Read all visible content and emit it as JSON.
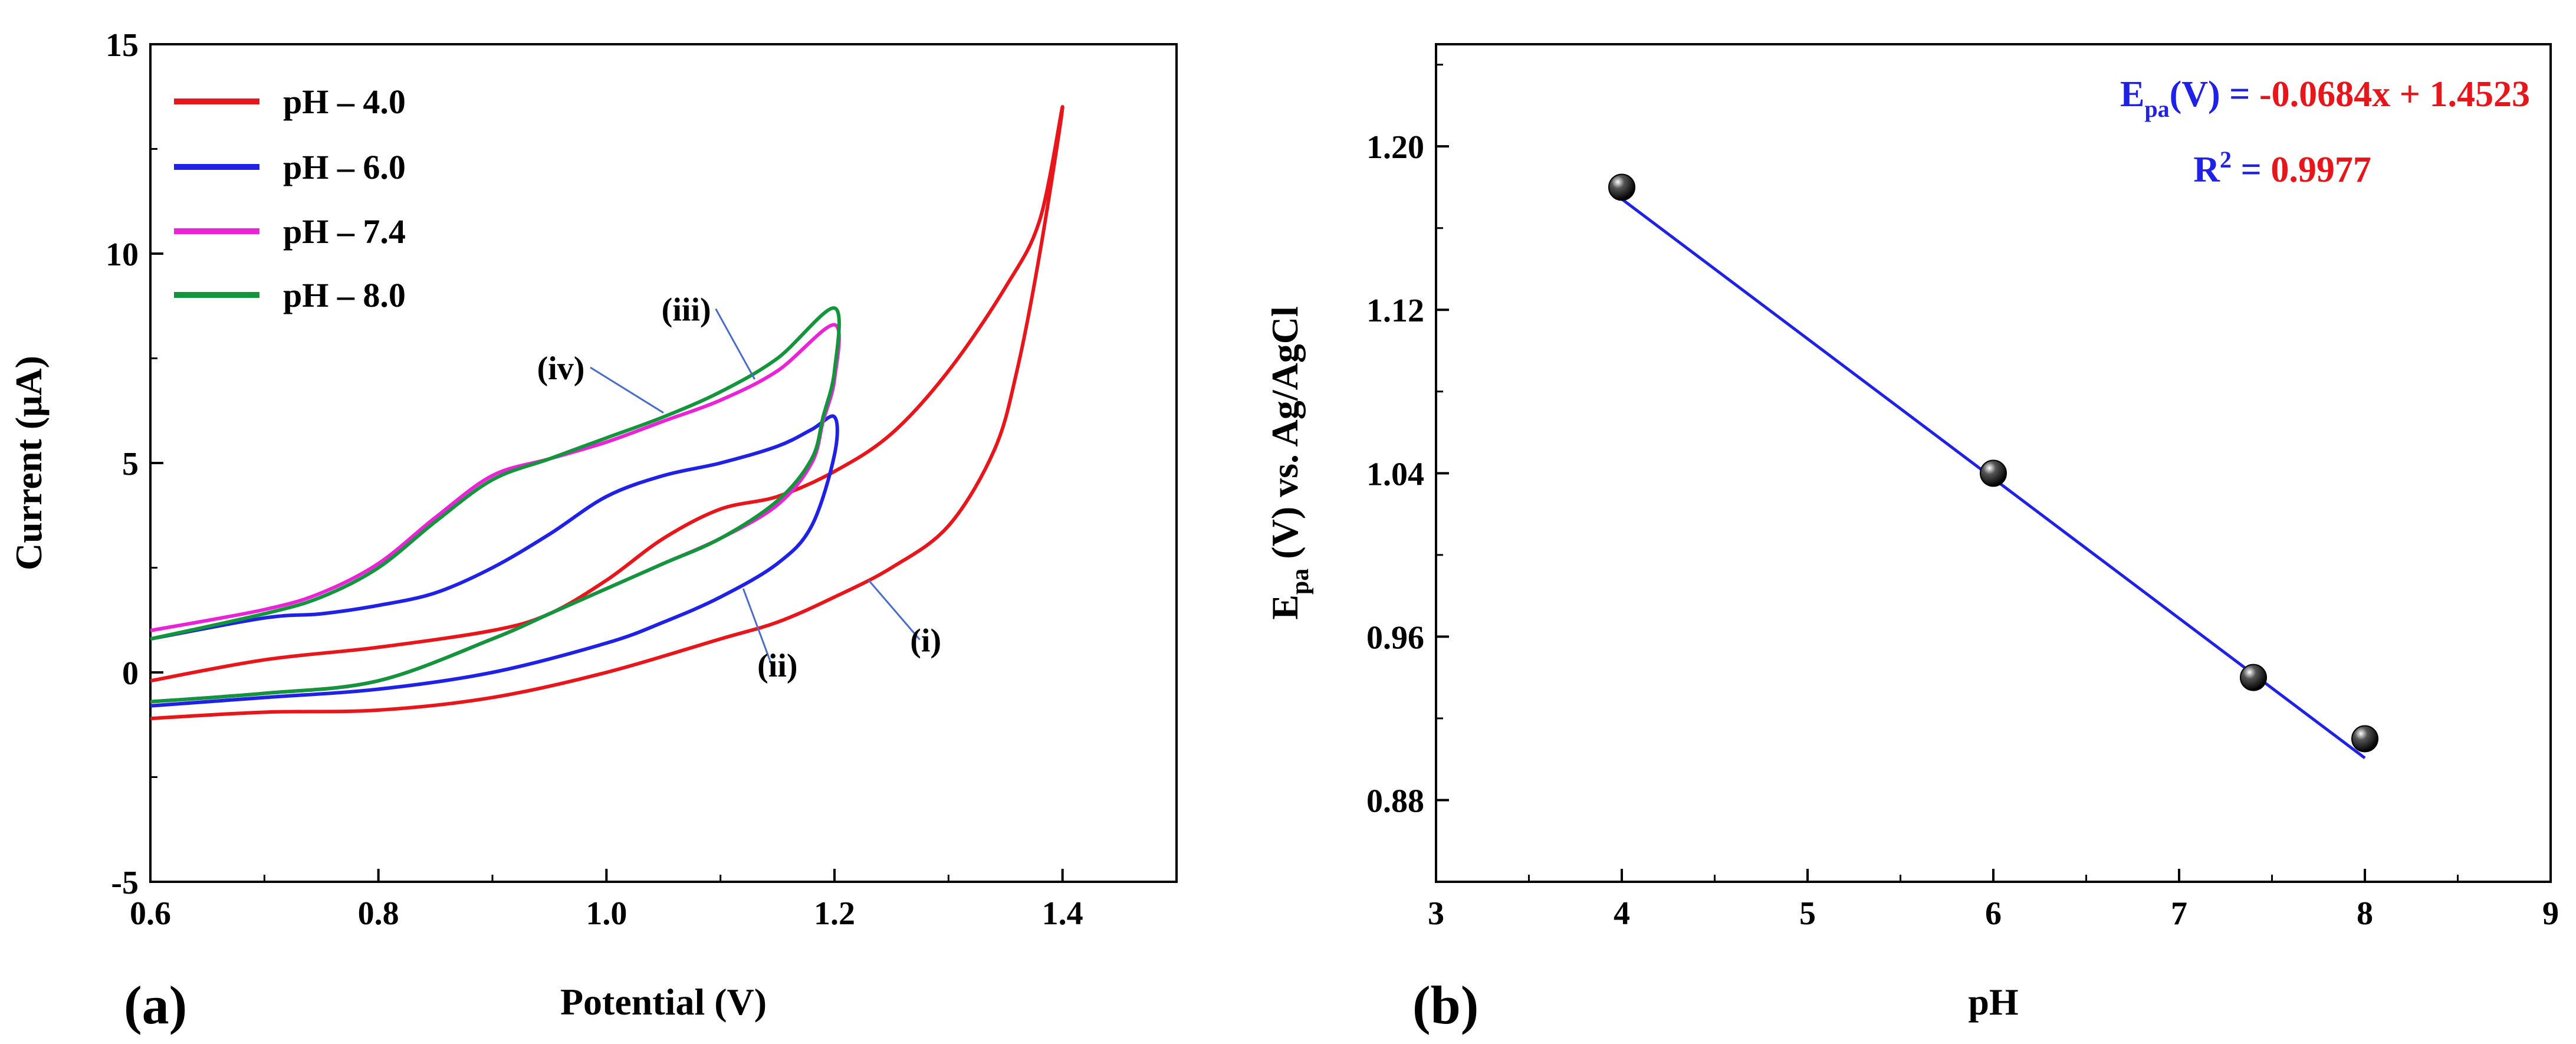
{
  "colors": {
    "red": "#e8151b",
    "blue": "#1f22e6",
    "magenta": "#ec22d8",
    "green": "#12963b",
    "axis": "#000000"
  },
  "panels": {
    "a": "(a)",
    "b": "(b)"
  },
  "chart_data": [
    {
      "type": "line",
      "panel": "(a)",
      "xlabel": "Potential (V)",
      "ylabel": "Current (μA)",
      "xlim": [
        0.6,
        1.5
      ],
      "ylim": [
        -5,
        15
      ],
      "xticks": [
        0.6,
        0.8,
        1.0,
        1.2,
        1.4
      ],
      "xtick_labels": [
        "0.6",
        "0.8",
        "1.0",
        "1.2",
        "1.4"
      ],
      "yticks": [
        -5,
        0,
        5,
        10,
        15
      ],
      "ytick_labels": [
        "-5",
        "0",
        "5",
        "10",
        "15"
      ],
      "legend_position": "top-left",
      "series": [
        {
          "name": "pH – 4.0",
          "color": "red",
          "label": "(i)",
          "x": [
            0.6,
            0.7,
            0.8,
            0.9,
            0.95,
            1.0,
            1.05,
            1.1,
            1.15,
            1.2,
            1.25,
            1.3,
            1.35,
            1.38,
            1.4,
            1.38,
            1.36,
            1.34,
            1.3,
            1.25,
            1.2,
            1.15,
            1.1,
            1.0,
            0.9,
            0.8,
            0.7,
            0.6
          ],
          "y": [
            -0.2,
            0.3,
            0.6,
            1.0,
            1.4,
            2.2,
            3.2,
            3.9,
            4.2,
            4.8,
            5.7,
            7.2,
            9.2,
            10.8,
            13.5,
            10.0,
            7.2,
            5.3,
            3.5,
            2.5,
            1.8,
            1.2,
            0.8,
            0.0,
            -0.6,
            -0.9,
            -0.95,
            -1.1
          ]
        },
        {
          "name": "pH – 6.0",
          "color": "blue",
          "label": "(ii)",
          "x": [
            0.6,
            0.7,
            0.75,
            0.8,
            0.85,
            0.9,
            0.95,
            1.0,
            1.05,
            1.1,
            1.15,
            1.18,
            1.2,
            1.2,
            1.18,
            1.15,
            1.1,
            1.05,
            1.0,
            0.9,
            0.8,
            0.7,
            0.6
          ],
          "y": [
            0.8,
            1.3,
            1.4,
            1.6,
            1.9,
            2.5,
            3.3,
            4.2,
            4.7,
            5.0,
            5.4,
            5.8,
            6.1,
            5.2,
            3.5,
            2.6,
            1.8,
            1.2,
            0.7,
            0.0,
            -0.4,
            -0.6,
            -0.8
          ]
        },
        {
          "name": "pH – 7.4",
          "color": "magenta",
          "label": "(iii)",
          "x": [
            0.6,
            0.7,
            0.75,
            0.8,
            0.85,
            0.9,
            0.95,
            1.0,
            1.05,
            1.1,
            1.15,
            1.2,
            1.2,
            1.19,
            1.18,
            1.15,
            1.1,
            1.05,
            1.0,
            0.95,
            0.9,
            0.8,
            0.7,
            0.6
          ],
          "y": [
            1.0,
            1.5,
            1.9,
            2.6,
            3.7,
            4.7,
            5.1,
            5.5,
            6.0,
            6.5,
            7.2,
            8.3,
            7.0,
            6.0,
            5.0,
            4.0,
            3.2,
            2.6,
            2.0,
            1.4,
            0.8,
            -0.2,
            -0.5,
            -0.7
          ]
        },
        {
          "name": "pH – 8.0",
          "color": "green",
          "label": "(iv)",
          "x": [
            0.6,
            0.7,
            0.75,
            0.8,
            0.85,
            0.9,
            0.95,
            1.0,
            1.05,
            1.1,
            1.15,
            1.2,
            1.2,
            1.19,
            1.18,
            1.15,
            1.1,
            1.05,
            1.0,
            0.95,
            0.9,
            0.8,
            0.7,
            0.6
          ],
          "y": [
            0.8,
            1.4,
            1.8,
            2.5,
            3.6,
            4.6,
            5.1,
            5.6,
            6.1,
            6.7,
            7.5,
            8.7,
            7.2,
            6.1,
            5.1,
            4.1,
            3.2,
            2.6,
            2.0,
            1.4,
            0.8,
            -0.2,
            -0.5,
            -0.7
          ]
        }
      ],
      "annotations": [
        {
          "text": "(i)",
          "x": 1.28,
          "y": 0.5,
          "target_x": 1.23,
          "target_y": 2.2
        },
        {
          "text": "(ii)",
          "x": 1.15,
          "y": -0.1,
          "target_x": 1.12,
          "target_y": 2.0
        },
        {
          "text": "(iii)",
          "x": 1.07,
          "y": 8.4,
          "target_x": 1.13,
          "target_y": 7.0
        },
        {
          "text": "(iv)",
          "x": 0.96,
          "y": 7.0,
          "target_x": 1.05,
          "target_y": 6.2
        }
      ]
    },
    {
      "type": "scatter",
      "panel": "(b)",
      "xlabel": "pH",
      "ylabel": "Epa(V) vs. Ag/AgCl",
      "xlim": [
        3,
        9
      ],
      "ylim": [
        0.84,
        1.25
      ],
      "xticks": [
        3,
        4,
        5,
        6,
        7,
        8,
        9
      ],
      "xtick_labels": [
        "3",
        "4",
        "5",
        "6",
        "7",
        "8",
        "9"
      ],
      "yticks": [
        0.88,
        0.96,
        1.04,
        1.12,
        1.2
      ],
      "ytick_labels": [
        "0.88",
        "0.96",
        "1.04",
        "1.12",
        "1.20"
      ],
      "points": {
        "x": [
          4.0,
          6.0,
          7.4,
          8.0
        ],
        "y": [
          1.18,
          1.04,
          0.94,
          0.91
        ]
      },
      "fit": {
        "slope": -0.0684,
        "intercept": 1.4523,
        "x_range": [
          4.0,
          8.0
        ]
      },
      "equation": {
        "lhs_main": "E",
        "lhs_sub": "pa",
        "lhs_rest": "(V) = ",
        "rhs": "-0.0684x + 1.4523",
        "r2_main": "R",
        "r2_sup": "2",
        "r2_eq": " = ",
        "r2_value": "0.9977"
      }
    }
  ]
}
